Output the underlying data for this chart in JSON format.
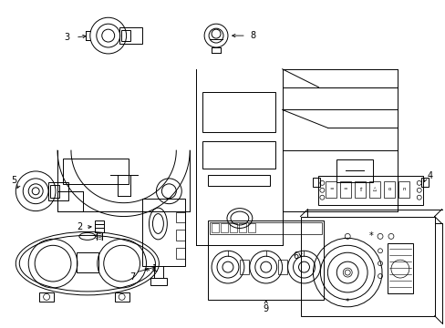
{
  "fig_width": 4.89,
  "fig_height": 3.6,
  "dpi": 100,
  "bg": "#ffffff",
  "lc": "#000000",
  "gray": "#888888",
  "lgray": "#cccccc"
}
